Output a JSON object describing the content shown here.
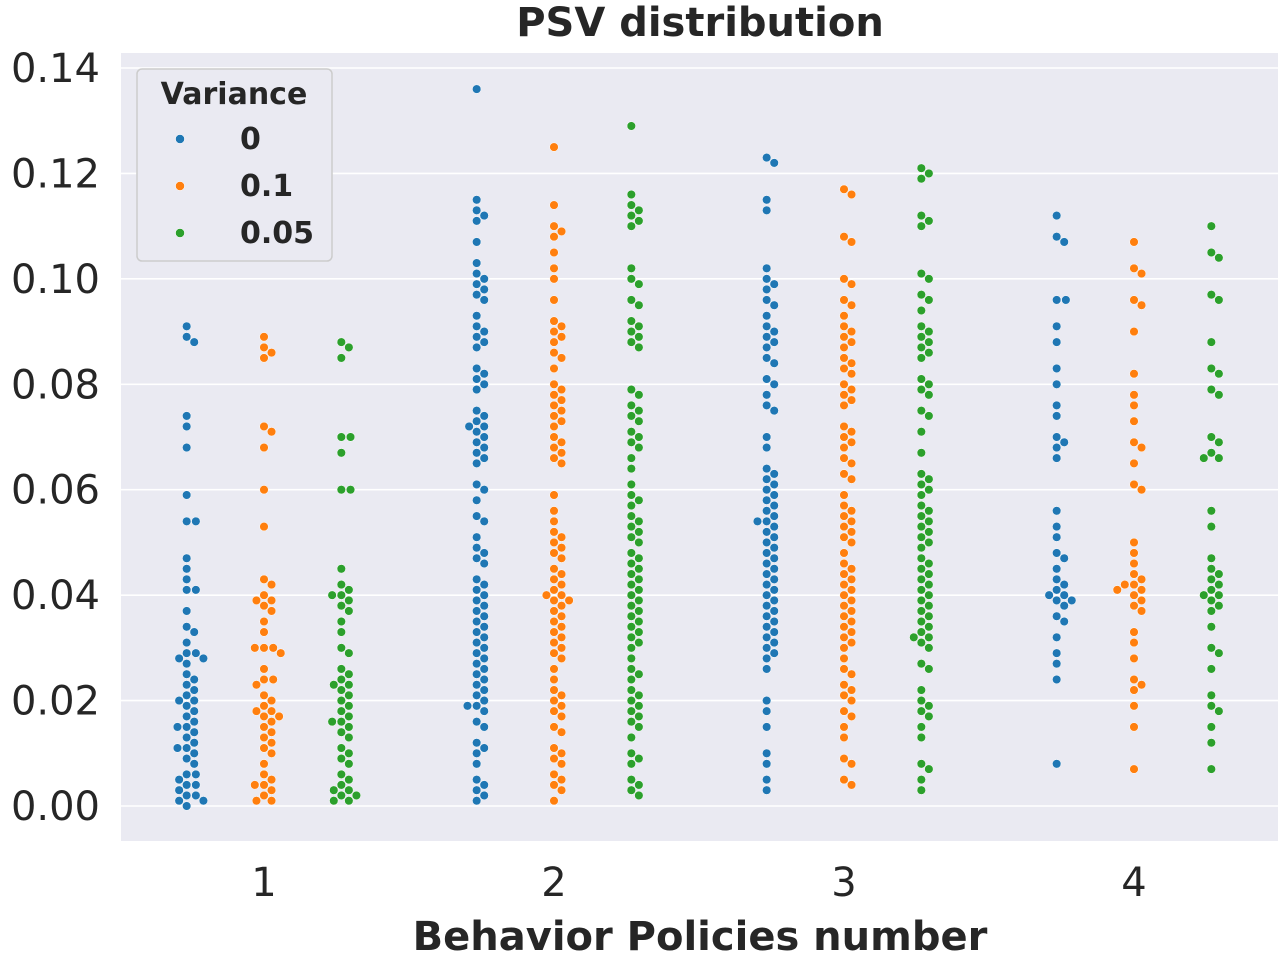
{
  "chart_data": {
    "type": "scatter",
    "subtype": "swarm",
    "title": "PSV distribution",
    "xlabel": "Behavior Policies number",
    "ylabel": "",
    "categories": [
      "1",
      "2",
      "3",
      "4"
    ],
    "ylim": [
      -0.0065,
      0.142
    ],
    "yticks": [
      "0.00",
      "0.02",
      "0.04",
      "0.06",
      "0.08",
      "0.10",
      "0.12",
      "0.14"
    ],
    "ytick_values": [
      0.0,
      0.02,
      0.04,
      0.06,
      0.08,
      0.1,
      0.12,
      0.14
    ],
    "grid": true,
    "legend": {
      "title": "Variance",
      "placement": "top-left",
      "entries": [
        {
          "label": "0",
          "color": "#1f77b4"
        },
        {
          "label": "0.1",
          "color": "#ff7f0e"
        },
        {
          "label": "0.05",
          "color": "#2ca02c"
        }
      ]
    },
    "series": [
      {
        "name": "0",
        "color": "#1f77b4",
        "values": [
          [
            0.091,
            0.089,
            0.088,
            0.074,
            0.072,
            0.068,
            0.059,
            0.054,
            0.054,
            0.047,
            0.045,
            0.043,
            0.041,
            0.041,
            0.037,
            0.034,
            0.033,
            0.031,
            0.029,
            0.029,
            0.028,
            0.028,
            0.027,
            0.025,
            0.024,
            0.023,
            0.022,
            0.021,
            0.02,
            0.02,
            0.019,
            0.018,
            0.017,
            0.016,
            0.015,
            0.015,
            0.014,
            0.013,
            0.012,
            0.011,
            0.011,
            0.01,
            0.009,
            0.008,
            0.006,
            0.006,
            0.005,
            0.004,
            0.004,
            0.003,
            0.002,
            0.002,
            0.001,
            0.001,
            0.0
          ],
          [
            0.136,
            0.115,
            0.113,
            0.112,
            0.111,
            0.107,
            0.103,
            0.101,
            0.1,
            0.099,
            0.098,
            0.097,
            0.096,
            0.093,
            0.091,
            0.09,
            0.089,
            0.088,
            0.087,
            0.083,
            0.082,
            0.081,
            0.08,
            0.079,
            0.075,
            0.074,
            0.073,
            0.072,
            0.072,
            0.071,
            0.07,
            0.069,
            0.068,
            0.067,
            0.066,
            0.065,
            0.061,
            0.06,
            0.058,
            0.055,
            0.054,
            0.051,
            0.049,
            0.048,
            0.047,
            0.046,
            0.043,
            0.042,
            0.041,
            0.04,
            0.039,
            0.038,
            0.037,
            0.036,
            0.035,
            0.034,
            0.033,
            0.032,
            0.031,
            0.03,
            0.029,
            0.028,
            0.027,
            0.026,
            0.025,
            0.024,
            0.023,
            0.022,
            0.021,
            0.02,
            0.019,
            0.019,
            0.018,
            0.016,
            0.015,
            0.012,
            0.011,
            0.01,
            0.008,
            0.005,
            0.004,
            0.003,
            0.002,
            0.001
          ],
          [
            0.123,
            0.122,
            0.115,
            0.113,
            0.102,
            0.1,
            0.099,
            0.098,
            0.096,
            0.095,
            0.093,
            0.091,
            0.09,
            0.089,
            0.088,
            0.087,
            0.085,
            0.084,
            0.081,
            0.08,
            0.078,
            0.076,
            0.075,
            0.07,
            0.068,
            0.064,
            0.063,
            0.062,
            0.061,
            0.06,
            0.059,
            0.058,
            0.057,
            0.056,
            0.055,
            0.054,
            0.054,
            0.053,
            0.052,
            0.051,
            0.05,
            0.049,
            0.048,
            0.047,
            0.046,
            0.045,
            0.044,
            0.043,
            0.042,
            0.041,
            0.04,
            0.039,
            0.038,
            0.037,
            0.036,
            0.035,
            0.034,
            0.033,
            0.032,
            0.031,
            0.03,
            0.029,
            0.028,
            0.026,
            0.02,
            0.018,
            0.015,
            0.01,
            0.008,
            0.005,
            0.003
          ],
          [
            0.112,
            0.108,
            0.107,
            0.096,
            0.096,
            0.091,
            0.088,
            0.083,
            0.08,
            0.076,
            0.074,
            0.07,
            0.069,
            0.068,
            0.066,
            0.056,
            0.053,
            0.051,
            0.048,
            0.047,
            0.045,
            0.043,
            0.042,
            0.041,
            0.04,
            0.04,
            0.039,
            0.039,
            0.038,
            0.036,
            0.035,
            0.032,
            0.029,
            0.027,
            0.024,
            0.008
          ]
        ]
      },
      {
        "name": "0.1",
        "color": "#ff7f0e",
        "values": [
          [
            0.089,
            0.087,
            0.086,
            0.085,
            0.072,
            0.071,
            0.068,
            0.06,
            0.053,
            0.043,
            0.042,
            0.04,
            0.039,
            0.039,
            0.038,
            0.037,
            0.035,
            0.033,
            0.03,
            0.03,
            0.03,
            0.029,
            0.026,
            0.024,
            0.024,
            0.023,
            0.021,
            0.02,
            0.019,
            0.018,
            0.018,
            0.017,
            0.017,
            0.016,
            0.015,
            0.014,
            0.013,
            0.012,
            0.011,
            0.01,
            0.008,
            0.006,
            0.005,
            0.004,
            0.004,
            0.003,
            0.002,
            0.001,
            0.001
          ],
          [
            0.125,
            0.114,
            0.11,
            0.109,
            0.108,
            0.105,
            0.102,
            0.1,
            0.096,
            0.092,
            0.091,
            0.09,
            0.089,
            0.088,
            0.086,
            0.085,
            0.083,
            0.08,
            0.079,
            0.078,
            0.077,
            0.076,
            0.075,
            0.074,
            0.073,
            0.072,
            0.07,
            0.069,
            0.068,
            0.067,
            0.066,
            0.065,
            0.059,
            0.056,
            0.054,
            0.052,
            0.051,
            0.05,
            0.049,
            0.048,
            0.047,
            0.045,
            0.044,
            0.043,
            0.042,
            0.041,
            0.04,
            0.04,
            0.039,
            0.039,
            0.038,
            0.037,
            0.036,
            0.035,
            0.034,
            0.033,
            0.032,
            0.031,
            0.03,
            0.029,
            0.028,
            0.026,
            0.024,
            0.022,
            0.021,
            0.02,
            0.019,
            0.018,
            0.017,
            0.015,
            0.014,
            0.011,
            0.01,
            0.009,
            0.008,
            0.006,
            0.005,
            0.004,
            0.003,
            0.001
          ],
          [
            0.117,
            0.116,
            0.108,
            0.107,
            0.1,
            0.099,
            0.096,
            0.095,
            0.093,
            0.091,
            0.09,
            0.089,
            0.088,
            0.087,
            0.085,
            0.084,
            0.083,
            0.082,
            0.08,
            0.079,
            0.078,
            0.077,
            0.076,
            0.072,
            0.071,
            0.07,
            0.069,
            0.068,
            0.066,
            0.065,
            0.063,
            0.062,
            0.059,
            0.057,
            0.056,
            0.055,
            0.054,
            0.053,
            0.052,
            0.051,
            0.05,
            0.048,
            0.046,
            0.045,
            0.044,
            0.043,
            0.042,
            0.041,
            0.04,
            0.039,
            0.038,
            0.037,
            0.036,
            0.035,
            0.034,
            0.033,
            0.032,
            0.031,
            0.03,
            0.028,
            0.026,
            0.025,
            0.023,
            0.022,
            0.021,
            0.02,
            0.018,
            0.017,
            0.015,
            0.013,
            0.009,
            0.008,
            0.005,
            0.004
          ],
          [
            0.107,
            0.102,
            0.101,
            0.096,
            0.095,
            0.09,
            0.082,
            0.078,
            0.076,
            0.073,
            0.069,
            0.068,
            0.065,
            0.061,
            0.06,
            0.05,
            0.048,
            0.046,
            0.044,
            0.043,
            0.042,
            0.042,
            0.041,
            0.041,
            0.04,
            0.039,
            0.038,
            0.037,
            0.033,
            0.031,
            0.028,
            0.024,
            0.023,
            0.022,
            0.019,
            0.015,
            0.007
          ]
        ]
      },
      {
        "name": "0.05",
        "color": "#2ca02c",
        "values": [
          [
            0.088,
            0.087,
            0.085,
            0.07,
            0.07,
            0.067,
            0.06,
            0.06,
            0.045,
            0.042,
            0.041,
            0.04,
            0.04,
            0.039,
            0.038,
            0.037,
            0.035,
            0.033,
            0.03,
            0.029,
            0.026,
            0.025,
            0.024,
            0.023,
            0.023,
            0.022,
            0.021,
            0.02,
            0.019,
            0.018,
            0.017,
            0.016,
            0.016,
            0.015,
            0.014,
            0.013,
            0.011,
            0.01,
            0.009,
            0.008,
            0.006,
            0.005,
            0.004,
            0.003,
            0.003,
            0.002,
            0.002,
            0.001,
            0.001
          ],
          [
            0.129,
            0.116,
            0.114,
            0.113,
            0.112,
            0.111,
            0.11,
            0.102,
            0.1,
            0.099,
            0.096,
            0.095,
            0.092,
            0.091,
            0.09,
            0.089,
            0.088,
            0.087,
            0.079,
            0.078,
            0.076,
            0.075,
            0.074,
            0.073,
            0.071,
            0.07,
            0.069,
            0.068,
            0.066,
            0.064,
            0.061,
            0.059,
            0.058,
            0.057,
            0.055,
            0.054,
            0.053,
            0.052,
            0.051,
            0.05,
            0.048,
            0.047,
            0.046,
            0.045,
            0.044,
            0.043,
            0.042,
            0.041,
            0.04,
            0.039,
            0.038,
            0.037,
            0.036,
            0.035,
            0.034,
            0.033,
            0.032,
            0.031,
            0.03,
            0.028,
            0.026,
            0.025,
            0.024,
            0.022,
            0.021,
            0.02,
            0.019,
            0.018,
            0.017,
            0.016,
            0.015,
            0.013,
            0.01,
            0.009,
            0.008,
            0.005,
            0.004,
            0.003,
            0.002
          ],
          [
            0.121,
            0.12,
            0.119,
            0.112,
            0.111,
            0.11,
            0.101,
            0.1,
            0.097,
            0.096,
            0.094,
            0.091,
            0.09,
            0.089,
            0.088,
            0.087,
            0.086,
            0.085,
            0.081,
            0.08,
            0.079,
            0.078,
            0.075,
            0.074,
            0.071,
            0.067,
            0.063,
            0.062,
            0.061,
            0.06,
            0.059,
            0.057,
            0.056,
            0.055,
            0.054,
            0.053,
            0.052,
            0.051,
            0.05,
            0.049,
            0.047,
            0.046,
            0.045,
            0.044,
            0.043,
            0.042,
            0.041,
            0.04,
            0.039,
            0.038,
            0.037,
            0.036,
            0.035,
            0.034,
            0.033,
            0.032,
            0.032,
            0.031,
            0.03,
            0.027,
            0.026,
            0.022,
            0.02,
            0.019,
            0.018,
            0.017,
            0.015,
            0.013,
            0.008,
            0.007,
            0.005,
            0.003
          ],
          [
            0.11,
            0.105,
            0.104,
            0.097,
            0.096,
            0.088,
            0.083,
            0.082,
            0.079,
            0.078,
            0.07,
            0.069,
            0.067,
            0.066,
            0.066,
            0.056,
            0.053,
            0.047,
            0.045,
            0.044,
            0.043,
            0.042,
            0.041,
            0.04,
            0.04,
            0.039,
            0.038,
            0.037,
            0.034,
            0.03,
            0.029,
            0.026,
            0.021,
            0.019,
            0.018,
            0.015,
            0.012,
            0.007
          ]
        ]
      }
    ]
  }
}
